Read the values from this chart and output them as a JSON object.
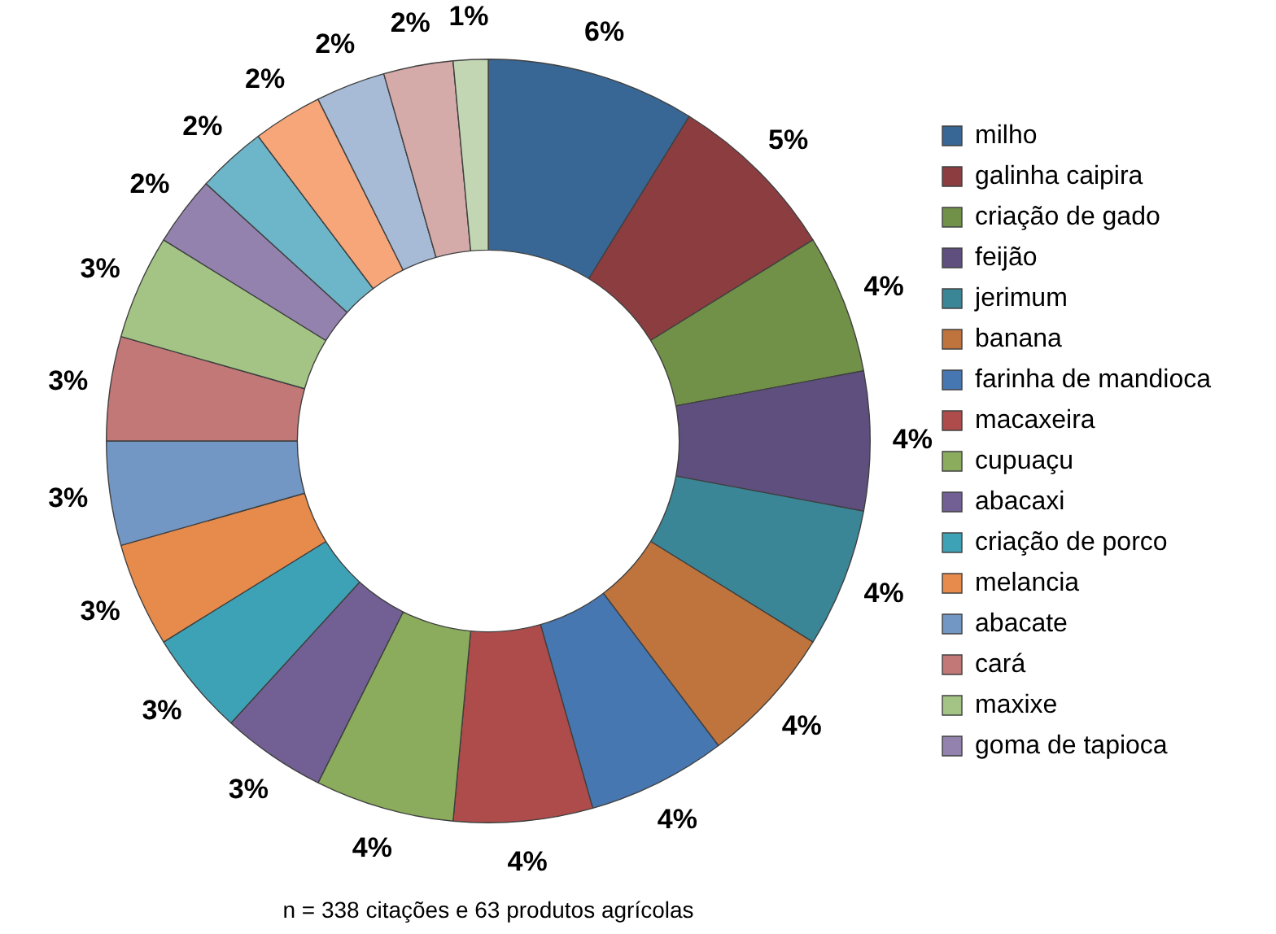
{
  "chart_data": {
    "type": "donut",
    "categories": [
      "milho",
      "galinha caipira",
      "criação de gado",
      "feijão",
      "jerimum",
      "banana",
      "farinha de mandioca",
      "macaxeira",
      "cupuaçu",
      "abacaxi",
      "criação de porco",
      "melancia",
      "abacate",
      "cará",
      "maxixe",
      "goma de tapioca",
      null,
      null,
      null,
      null,
      null
    ],
    "values": [
      6,
      5,
      4,
      4,
      4,
      4,
      4,
      4,
      4,
      3,
      3,
      3,
      3,
      3,
      3,
      2,
      2,
      2,
      2,
      2,
      1
    ],
    "value_labels": [
      "6%",
      "5%",
      "4%",
      "4%",
      "4%",
      "4%",
      "4%",
      "4%",
      "4%",
      "3%",
      "3%",
      "3%",
      "3%",
      "3%",
      "3%",
      "2%",
      "2%",
      "2%",
      "2%",
      "2%",
      "1%"
    ],
    "colors": [
      "#386796",
      "#8c3d40",
      "#719048",
      "#5e4f7e",
      "#3a8596",
      "#be743c",
      "#4677b1",
      "#ad4c4b",
      "#8aac5c",
      "#726095",
      "#3ea2b6",
      "#e68b4b",
      "#7397c5",
      "#c27877",
      "#a3c485",
      "#9382ad",
      "#6db6c9",
      "#f6a679",
      "#a7bbd6",
      "#d5abaa",
      "#c3d6b4"
    ],
    "legend": "right",
    "annotations": [
      "n = 338 citações e 63 produtos agrícolas"
    ]
  }
}
